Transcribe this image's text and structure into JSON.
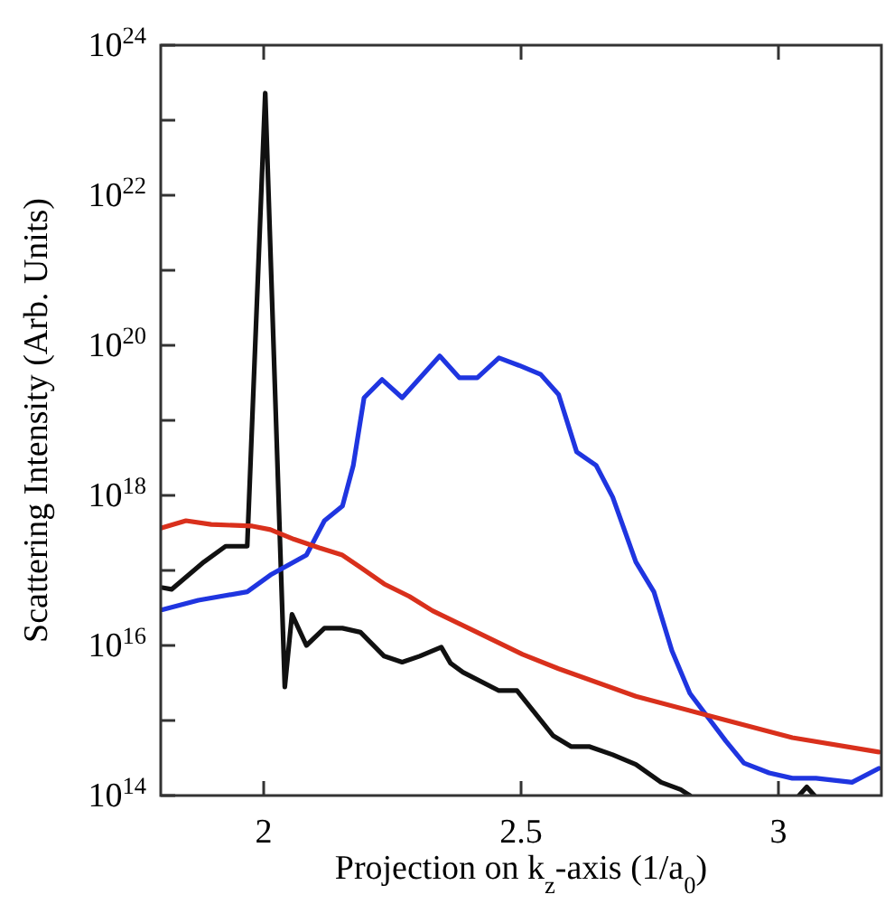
{
  "chart_data": {
    "type": "line",
    "xlabel": "Projection on k$_{z}$-axis (1/a$_{0}$)",
    "ylabel": "Scattering Intensity (Arb. Units)",
    "log": "y",
    "grid": false,
    "line_style": "solid",
    "xlim": [
      1.8,
      3.2
    ],
    "xticks": [
      2,
      2.5,
      3
    ],
    "ylim": [
      100000000000000.0,
      1e+24
    ],
    "yticks": [
      {
        "value": 100000000000000.0,
        "label": "10$^{14}$"
      },
      {
        "value": 1000000000000000.0,
        "label": null
      },
      {
        "value": 1e+16,
        "label": "10$^{16}$"
      },
      {
        "value": 1e+17,
        "label": null
      },
      {
        "value": 1e+18,
        "label": "10$^{18}$"
      },
      {
        "value": 1e+19,
        "label": null
      },
      {
        "value": 1e+20,
        "label": "10$^{20}$"
      },
      {
        "value": 1e+21,
        "label": null
      },
      {
        "value": 1e+22,
        "label": "10$^{22}$"
      },
      {
        "value": 1e+23,
        "label": null
      },
      {
        "value": 1e+24,
        "label": "10$^{24}$"
      }
    ],
    "series": [
      {
        "color": "#111111",
        "x": [
          1.803,
          1.821,
          1.884,
          1.926,
          1.968,
          2.003,
          2.041,
          2.055,
          2.083,
          2.118,
          2.153,
          2.188,
          2.234,
          2.269,
          2.303,
          2.345,
          2.363,
          2.387,
          2.457,
          2.492,
          2.562,
          2.597,
          2.632,
          2.678,
          2.723,
          2.772,
          2.81,
          2.828
        ],
        "values": [
          5.9e+16,
          5.6e+16,
          1.3e+17,
          2.1e+17,
          2.1e+17,
          2.3e+23,
          2800000000000000.0,
          2.6e+16,
          1e+16,
          1.7e+16,
          1.7e+16,
          1.5e+16,
          7200000000000000.0,
          6000000000000000.0,
          7200000000000000.0,
          9500000000000000.0,
          5800000000000000.0,
          4400000000000000.0,
          2500000000000000.0,
          2500000000000000.0,
          630000000000000.0,
          450000000000000.0,
          450000000000000.0,
          350000000000000.0,
          260000000000000.0,
          150000000000000.0,
          120000000000000.0,
          100000000000000.0
        ]
      },
      {
        "color": "#111111",
        "x": [
          3.04,
          3.055,
          3.07
        ],
        "values": [
          100000000000000.0,
          130000000000000.0,
          100000000000000.0
        ]
      },
      {
        "color": "#1f35e0",
        "x": [
          1.803,
          1.873,
          1.968,
          2.013,
          2.083,
          2.118,
          2.153,
          2.174,
          2.195,
          2.23,
          2.269,
          2.342,
          2.38,
          2.415,
          2.457,
          2.496,
          2.538,
          2.573,
          2.608,
          2.646,
          2.678,
          2.723,
          2.758,
          2.793,
          2.828,
          2.863,
          2.898,
          2.933,
          2.982,
          3.027,
          3.073,
          3.143,
          3.195
        ],
        "values": [
          3e+16,
          4e+16,
          5.2e+16,
          8.7e+16,
          1.6e+17,
          4.6e+17,
          7.2e+17,
          2.5e+18,
          2e+19,
          3.5e+19,
          2e+19,
          7.2e+19,
          3.7e+19,
          3.7e+19,
          6.8e+19,
          5.4e+19,
          4.1e+19,
          2.2e+19,
          3.8e+18,
          2.5e+18,
          9.5e+17,
          1.3e+17,
          5.2e+16,
          8500000000000000.0,
          2300000000000000.0,
          1100000000000000.0,
          530000000000000.0,
          270000000000000.0,
          200000000000000.0,
          170000000000000.0,
          170000000000000.0,
          150000000000000.0,
          230000000000000.0
        ]
      },
      {
        "color": "#d9301c",
        "x": [
          1.803,
          1.849,
          1.898,
          1.978,
          2.013,
          2.059,
          2.108,
          2.153,
          2.188,
          2.234,
          2.283,
          2.328,
          2.398,
          2.503,
          2.573,
          2.723,
          2.877,
          3.027,
          3.195
        ],
        "values": [
          3.7e+17,
          4.6e+17,
          4.1e+17,
          3.9e+17,
          3.5e+17,
          2.6e+17,
          2e+17,
          1.6e+17,
          1.1e+17,
          6.6e+16,
          4.5e+16,
          2.9e+16,
          1.7e+16,
          7600000000000000.0,
          4900000000000000.0,
          2100000000000000.0,
          1100000000000000.0,
          590000000000000.0,
          380000000000000.0
        ]
      }
    ]
  }
}
